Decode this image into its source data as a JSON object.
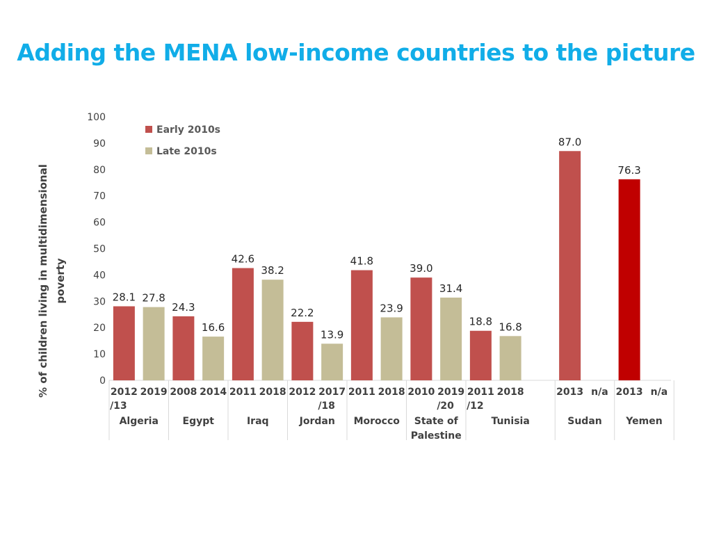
{
  "title": "Adding the MENA low-income countries to the picture",
  "colors": {
    "title": "#11ade8",
    "early": "#c0504d",
    "late": "#c4bd97",
    "yemen_early": "#c00000"
  },
  "chart_data": {
    "type": "bar",
    "ylabel": [
      "% of children living in multidimensional",
      "poverty"
    ],
    "ylim": [
      0,
      100
    ],
    "yticks": [
      "0",
      "10",
      "20",
      "30",
      "40",
      "50",
      "60",
      "70",
      "80",
      "90",
      "100"
    ],
    "legend_position": "top-left",
    "grid": false,
    "series_names": [
      "Early 2010s",
      "Late 2010s"
    ],
    "countries": [
      {
        "name": [
          "Algeria"
        ],
        "bars": [
          {
            "year": [
              "2012",
              "/13"
            ],
            "value": 28.1,
            "label": "28.1",
            "series": "early"
          },
          {
            "year": [
              "2019"
            ],
            "value": 27.8,
            "label": "27.8",
            "series": "late"
          }
        ]
      },
      {
        "name": [
          "Egypt"
        ],
        "bars": [
          {
            "year": [
              "2008"
            ],
            "value": 24.3,
            "label": "24.3",
            "series": "early"
          },
          {
            "year": [
              "2014"
            ],
            "value": 16.6,
            "label": "16.6",
            "series": "late"
          }
        ]
      },
      {
        "name": [
          "Iraq"
        ],
        "bars": [
          {
            "year": [
              "2011"
            ],
            "value": 42.6,
            "label": "42.6",
            "series": "early"
          },
          {
            "year": [
              "2018"
            ],
            "value": 38.2,
            "label": "38.2",
            "series": "late"
          }
        ]
      },
      {
        "name": [
          "Jordan"
        ],
        "bars": [
          {
            "year": [
              "2012"
            ],
            "value": 22.2,
            "label": "22.2",
            "series": "early"
          },
          {
            "year": [
              "2017",
              "/18"
            ],
            "value": 13.9,
            "label": "13.9",
            "series": "late"
          }
        ]
      },
      {
        "name": [
          "Morocco"
        ],
        "bars": [
          {
            "year": [
              "2011"
            ],
            "value": 41.8,
            "label": "41.8",
            "series": "early"
          },
          {
            "year": [
              "2018"
            ],
            "value": 23.9,
            "label": "23.9",
            "series": "late"
          }
        ]
      },
      {
        "name": [
          "State of",
          "Palestine"
        ],
        "bars": [
          {
            "year": [
              "2010"
            ],
            "value": 39.0,
            "label": "39.0",
            "series": "early"
          },
          {
            "year": [
              "2019",
              "/20"
            ],
            "value": 31.4,
            "label": "31.4",
            "series": "late"
          }
        ]
      },
      {
        "name": [
          "Tunisia"
        ],
        "bars": [
          {
            "year": [
              "2011",
              "/12"
            ],
            "value": 18.8,
            "label": "18.8",
            "series": "early"
          },
          {
            "year": [
              "2018"
            ],
            "value": 16.8,
            "label": "16.8",
            "series": "late"
          },
          {
            "year": [
              ""
            ],
            "value": null,
            "label": "",
            "series": "late"
          }
        ]
      },
      {
        "name": [
          "Sudan"
        ],
        "bars": [
          {
            "year": [
              "2013"
            ],
            "value": 87.0,
            "label": "87.0",
            "series": "early"
          },
          {
            "year": [
              "n/a"
            ],
            "value": null,
            "label": "",
            "series": "late"
          }
        ]
      },
      {
        "name": [
          "Yemen"
        ],
        "bars": [
          {
            "year": [
              "2013"
            ],
            "value": 76.3,
            "label": "76.3",
            "series": "early",
            "highlight": true
          },
          {
            "year": [
              "n/a"
            ],
            "value": null,
            "label": "",
            "series": "late"
          }
        ]
      }
    ]
  }
}
